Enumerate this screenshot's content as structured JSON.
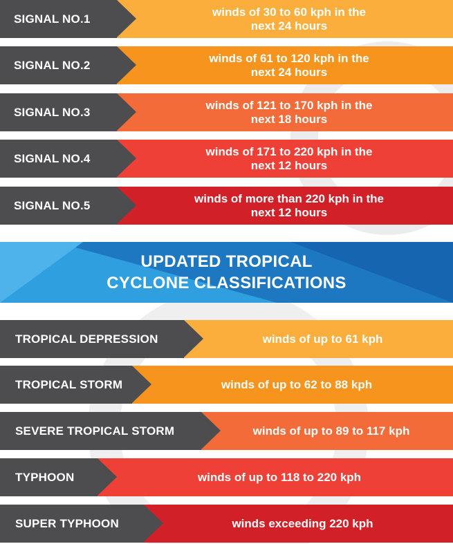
{
  "colors": {
    "label_bg": "#4d4d4f",
    "level1": "#fbae3c",
    "level2": "#f7941e",
    "level3": "#f26b38",
    "level4": "#ee4036",
    "level5": "#d12027",
    "banner_blue": "#2a8fd6"
  },
  "signals": [
    {
      "label": "SIGNAL NO.1",
      "line1": "winds of 30 to 60 kph in the",
      "line2": "next 24 hours"
    },
    {
      "label": "SIGNAL NO.2",
      "line1": "winds of 61 to 120 kph in the",
      "line2": "next 24 hours"
    },
    {
      "label": "SIGNAL NO.3",
      "line1": "winds of 121 to 170 kph in the",
      "line2": "next 18 hours"
    },
    {
      "label": "SIGNAL NO.4",
      "line1": "winds of 171 to 220 kph in the",
      "line2": "next 12 hours"
    },
    {
      "label": "SIGNAL NO.5",
      "line1": "winds of more than 220 kph in the",
      "line2": "next 12 hours"
    }
  ],
  "banner": {
    "line1": "UPDATED TROPICAL",
    "line2": "CYCLONE CLASSIFICATIONS"
  },
  "classifications": [
    {
      "label": "TROPICAL DEPRESSION",
      "desc": "winds of up to 61 kph"
    },
    {
      "label": "TROPICAL STORM",
      "desc": "winds of up to 62 to 88 kph"
    },
    {
      "label": "SEVERE TROPICAL STORM",
      "desc": "winds of up to 89 to 117 kph"
    },
    {
      "label": "TYPHOON",
      "desc": "winds of up to 118 to 220 kph"
    },
    {
      "label": "SUPER TYPHOON",
      "desc": "winds exceeding 220 kph"
    }
  ]
}
